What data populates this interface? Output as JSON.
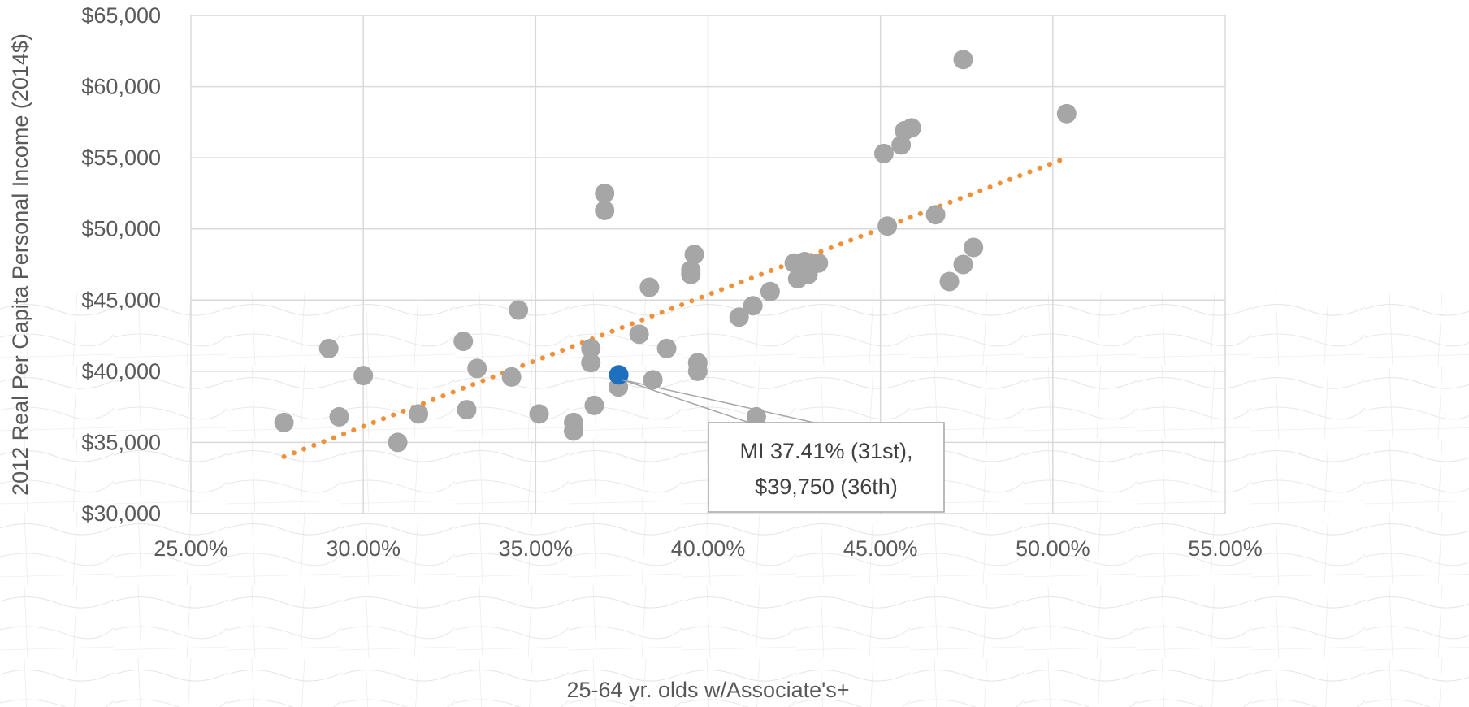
{
  "chart_data": {
    "type": "scatter",
    "title": "",
    "xlabel": "25-64 yr. olds w/Associate's+",
    "ylabel": "2012 Real Per Capita Personal Income (2014$)",
    "xlim": [
      0.25,
      0.55
    ],
    "ylim": [
      30000,
      65000
    ],
    "x_ticks": [
      0.25,
      0.3,
      0.35,
      0.4,
      0.45,
      0.5,
      0.55
    ],
    "x_tick_labels": [
      "25.00%",
      "30.00%",
      "35.00%",
      "40.00%",
      "45.00%",
      "50.00%",
      "55.00%"
    ],
    "y_ticks": [
      30000,
      35000,
      40000,
      45000,
      50000,
      55000,
      60000,
      65000
    ],
    "y_tick_labels": [
      "$30,000",
      "$35,000",
      "$40,000",
      "$45,000",
      "$50,000",
      "$55,000",
      "$60,000",
      "$65,000"
    ],
    "grid": true,
    "legend": "none",
    "series": [
      {
        "color": "#a6a6a6",
        "points": [
          [
            0.277,
            36400
          ],
          [
            0.29,
            41600
          ],
          [
            0.293,
            36800
          ],
          [
            0.3,
            39700
          ],
          [
            0.31,
            35000
          ],
          [
            0.316,
            37000
          ],
          [
            0.329,
            42100
          ],
          [
            0.33,
            37300
          ],
          [
            0.333,
            40200
          ],
          [
            0.343,
            39600
          ],
          [
            0.345,
            44300
          ],
          [
            0.351,
            37000
          ],
          [
            0.361,
            36400
          ],
          [
            0.361,
            35800
          ],
          [
            0.366,
            41600
          ],
          [
            0.366,
            40600
          ],
          [
            0.367,
            37600
          ],
          [
            0.37,
            52500
          ],
          [
            0.37,
            51300
          ],
          [
            0.374,
            38900
          ],
          [
            0.38,
            42600
          ],
          [
            0.383,
            45900
          ],
          [
            0.384,
            39400
          ],
          [
            0.388,
            41600
          ],
          [
            0.395,
            47100
          ],
          [
            0.395,
            46800
          ],
          [
            0.396,
            48200
          ],
          [
            0.397,
            40600
          ],
          [
            0.397,
            40000
          ],
          [
            0.409,
            43800
          ],
          [
            0.413,
            44600
          ],
          [
            0.414,
            36800
          ],
          [
            0.418,
            45600
          ],
          [
            0.425,
            47600
          ],
          [
            0.426,
            46500
          ],
          [
            0.428,
            47700
          ],
          [
            0.429,
            46800
          ],
          [
            0.432,
            47600
          ],
          [
            0.451,
            55300
          ],
          [
            0.452,
            50200
          ],
          [
            0.456,
            55900
          ],
          [
            0.457,
            56900
          ],
          [
            0.459,
            57100
          ],
          [
            0.466,
            51000
          ],
          [
            0.47,
            46300
          ],
          [
            0.474,
            47500
          ],
          [
            0.474,
            61900
          ],
          [
            0.477,
            48700
          ],
          [
            0.504,
            58100
          ]
        ]
      }
    ],
    "highlight": {
      "color": "#1f6fbf",
      "point": [
        0.3741,
        39750
      ],
      "callout": [
        "MI 37.41% (31st),",
        "$39,750  (36th)"
      ]
    },
    "trendline": {
      "style": "dotted",
      "color": "#f0913a",
      "points": [
        [
          0.277,
          34000
        ],
        [
          0.504,
          55000
        ]
      ]
    }
  }
}
